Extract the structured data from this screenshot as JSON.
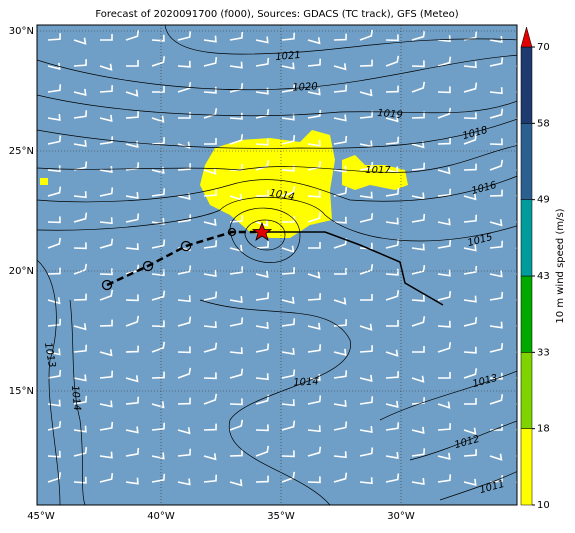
{
  "title": "Forecast of 2020091700 (f000), Sources: GDACS (TC track), GFS (Meteo)",
  "lon_labels": [
    "45°W",
    "40°W",
    "35°W",
    "30°W"
  ],
  "lat_labels": [
    "30°N",
    "25°N",
    "20°N",
    "15°N"
  ],
  "isobar_labels": [
    "1021",
    "1020",
    "1019",
    "1018",
    "1017",
    "1016",
    "1015",
    "1014",
    "1014",
    "1013",
    "1013",
    "1014",
    "1012",
    "1011"
  ],
  "colorbar": {
    "label": "10 m wind speed (m/s)",
    "ticks": [
      10,
      18,
      33,
      43,
      49,
      58,
      70
    ],
    "colors": [
      "#ffff00",
      "#7fd400",
      "#00a800",
      "#009c9c",
      "#2a5f8f",
      "#1f3a6e"
    ],
    "extend_color": "#e00000"
  }
}
